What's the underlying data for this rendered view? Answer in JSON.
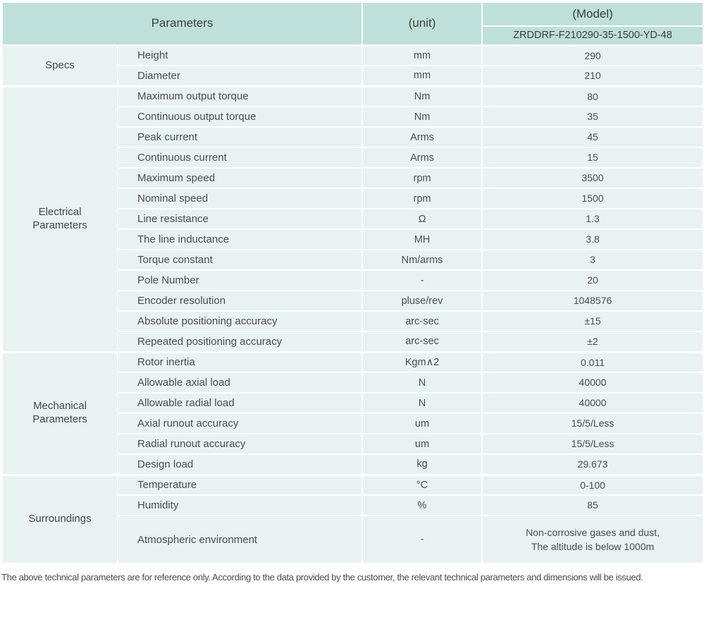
{
  "colors": {
    "header_bg": "#bfe0da",
    "row_bg": "#e8f3f1",
    "divider": "#ffffff",
    "text": "#4c4c4c"
  },
  "table": {
    "header": {
      "parameters": "Parameters",
      "unit": "(unit)",
      "model": "(Model)",
      "model_number": "ZRDDRF-F210290-35-1500-YD-48"
    },
    "sections": [
      {
        "group": "Specs",
        "rows": [
          {
            "param": "Height",
            "unit": "mm",
            "value": "290"
          },
          {
            "param": "Diameter",
            "unit": "mm",
            "value": "210"
          }
        ]
      },
      {
        "group": "Electrical Parameters",
        "rows": [
          {
            "param": "Maximum output torque",
            "unit": "Nm",
            "value": "80"
          },
          {
            "param": "Continuous output torque",
            "unit": "Nm",
            "value": "35"
          },
          {
            "param": "Peak current",
            "unit": "Arms",
            "value": "45"
          },
          {
            "param": "Continuous current",
            "unit": "Arms",
            "value": "15"
          },
          {
            "param": "Maximum speed",
            "unit": "rpm",
            "value": "3500"
          },
          {
            "param": "Nominal speed",
            "unit": "rpm",
            "value": "1500"
          },
          {
            "param": "Line resistance",
            "unit": "Ω",
            "value": "1.3"
          },
          {
            "param": "The line inductance",
            "unit": "MH",
            "value": "3.8"
          },
          {
            "param": "Torque constant",
            "unit": "Nm/arms",
            "value": "3"
          },
          {
            "param": "Pole Number",
            "unit": "-",
            "value": "20"
          },
          {
            "param": "Encoder resolution",
            "unit": "pluse/rev",
            "value": "1048576"
          },
          {
            "param": "Absolute positioning accuracy",
            "unit": "arc-sec",
            "value": "±15"
          },
          {
            "param": "Repeated positioning accuracy",
            "unit": "arc-sec",
            "value": "±2"
          }
        ]
      },
      {
        "group": "Mechanical Parameters",
        "rows": [
          {
            "param": "Rotor inertia",
            "unit": "Kgm∧2",
            "value": "0.011"
          },
          {
            "param": "Allowable axial load",
            "unit": "N",
            "value": "40000"
          },
          {
            "param": "Allowable radial load",
            "unit": "N",
            "value": "40000"
          },
          {
            "param": "Axial runout accuracy",
            "unit": "um",
            "value": "15/5/Less"
          },
          {
            "param": "Radial runout accuracy",
            "unit": "um",
            "value": "15/5/Less"
          },
          {
            "param": "Design load",
            "unit": "kg",
            "value": "29.673"
          }
        ]
      },
      {
        "group": "Surroundings",
        "rows": [
          {
            "param": "Temperature",
            "unit": "°C",
            "value": "0-100"
          },
          {
            "param": "Humidity",
            "unit": "%",
            "value": "85"
          },
          {
            "param": "Atmospheric environment",
            "unit": "-",
            "value": "Non-corrosive gases and dust,\nThe altitude is below 1000m",
            "tall": true
          }
        ]
      }
    ]
  },
  "footer": {
    "note": "The above technical parameters are for reference only. According to the data provided by the customer, the relevant technical parameters and dimensions will be issued."
  }
}
